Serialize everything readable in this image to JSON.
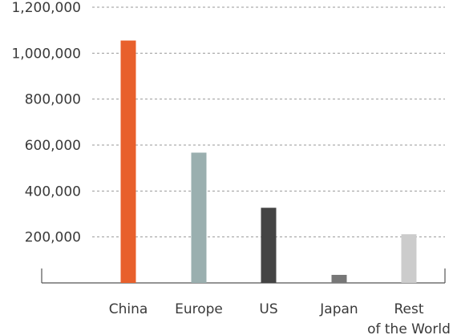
{
  "chart_data": {
    "type": "bar",
    "categories": [
      [
        "China"
      ],
      [
        "Europe"
      ],
      [
        "US"
      ],
      [
        "Japan"
      ],
      [
        "Rest",
        "of the World"
      ]
    ],
    "values": [
      1055000,
      567000,
      327000,
      35000,
      212000
    ],
    "bar_colors": [
      "#e8602c",
      "#9aafaf",
      "#444444",
      "#777777",
      "#cccccc"
    ],
    "yticks": [
      200000,
      400000,
      600000,
      800000,
      1000000,
      1200000
    ],
    "ytick_labels": [
      "200,000",
      "400,000",
      "600,000",
      "800,000",
      "1,000,000",
      "1,200,000"
    ],
    "ylim": [
      0,
      1200000
    ],
    "grid": "horizontal-dashed",
    "gridline_color": "#999999",
    "axis_color": "#555555",
    "title": "",
    "xlabel": "",
    "ylabel": ""
  }
}
